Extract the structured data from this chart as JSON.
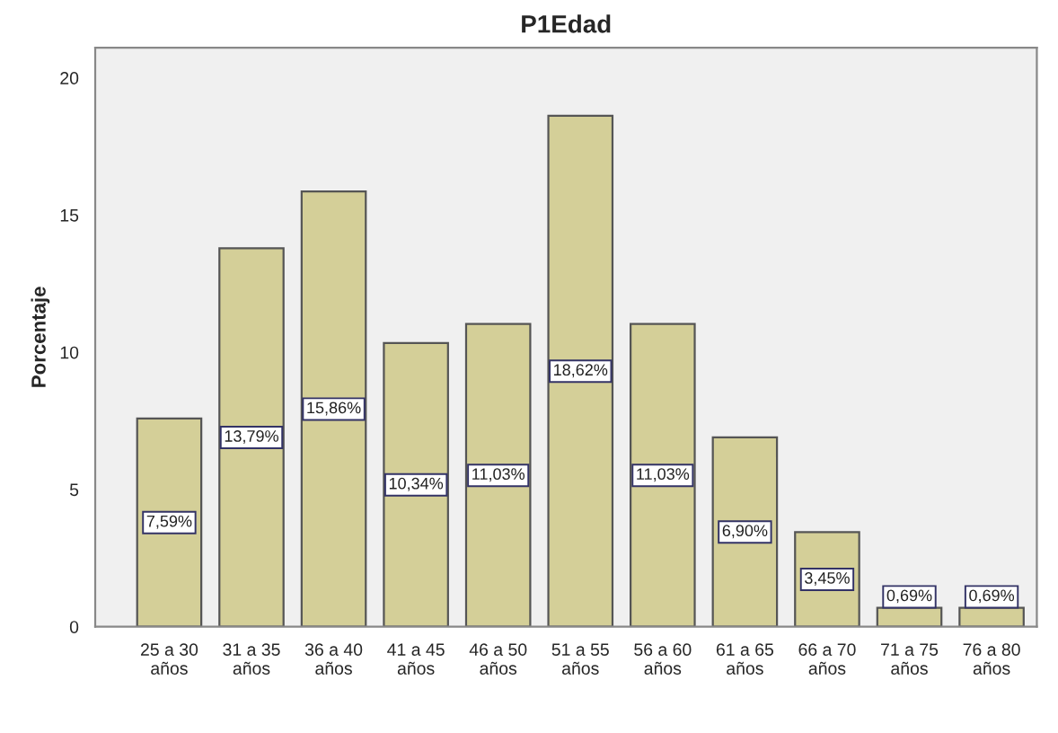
{
  "chart_data": {
    "type": "bar",
    "title": "P1Edad",
    "ylabel": "Porcentaje",
    "categories": [
      "25 a 30\naños",
      "31 a 35\naños",
      "36 a 40\naños",
      "41 a 45\naños",
      "46 a 50\naños",
      "51 a 55\naños",
      "56 a 60\naños",
      "61 a 65\naños",
      "66 a 70\naños",
      "71 a 75\naños",
      "76 a 80\naños"
    ],
    "values": [
      7.59,
      13.79,
      15.86,
      10.34,
      11.03,
      18.62,
      11.03,
      6.9,
      3.45,
      0.69,
      0.69
    ],
    "value_labels": [
      "7,59%",
      "13,79%",
      "15,86%",
      "10,34%",
      "11,03%",
      "18,62%",
      "11,03%",
      "6,90%",
      "3,45%",
      "0,69%",
      "0,69%"
    ],
    "color": "#d4cf98",
    "ylim": [
      0,
      21.1
    ],
    "yticks": [
      0,
      5,
      10,
      15,
      20
    ],
    "grid": false,
    "legend": false
  }
}
